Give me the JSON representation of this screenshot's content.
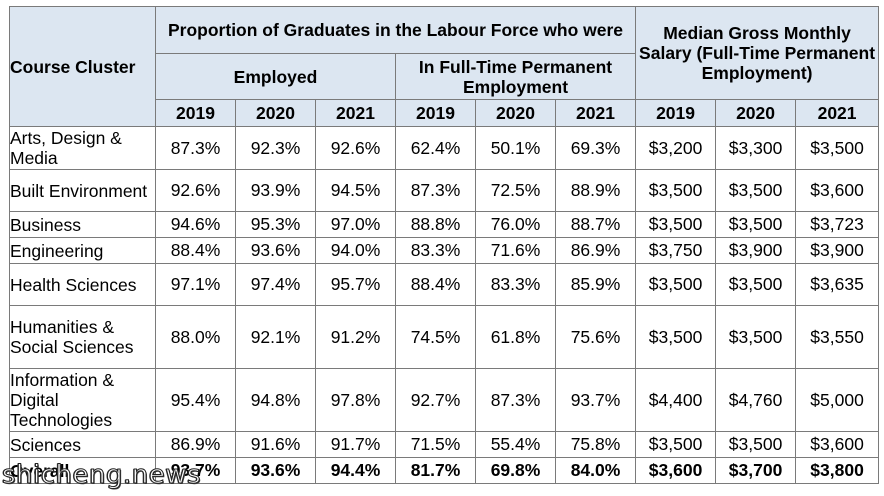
{
  "header": {
    "course_cluster": "Course Cluster",
    "proportion": "Proportion of Graduates in the Labour Force who were",
    "employed": "Employed",
    "full_time": "In Full-Time Permanent Employment",
    "salary": "Median Gross Monthly Salary (Full-Time Permanent Employment)",
    "years": [
      "2019",
      "2020",
      "2021"
    ]
  },
  "rows": [
    {
      "label": "Arts, Design & Media",
      "values": [
        "87.3%",
        "92.3%",
        "92.6%",
        "62.4%",
        "50.1%",
        "69.3%",
        "$3,200",
        "$3,300",
        "$3,500"
      ]
    },
    {
      "label": "Built Environment",
      "values": [
        "92.6%",
        "93.9%",
        "94.5%",
        "87.3%",
        "72.5%",
        "88.9%",
        "$3,500",
        "$3,500",
        "$3,600"
      ]
    },
    {
      "label": "Business",
      "values": [
        "94.6%",
        "95.3%",
        "97.0%",
        "88.8%",
        "76.0%",
        "88.7%",
        "$3,500",
        "$3,500",
        "$3,723"
      ]
    },
    {
      "label": "Engineering",
      "values": [
        "88.4%",
        "93.6%",
        "94.0%",
        "83.3%",
        "71.6%",
        "86.9%",
        "$3,750",
        "$3,900",
        "$3,900"
      ]
    },
    {
      "label": "Health Sciences",
      "values": [
        "97.1%",
        "97.4%",
        "95.7%",
        "88.4%",
        "83.3%",
        "85.9%",
        "$3,500",
        "$3,500",
        "$3,635"
      ]
    },
    {
      "label": "Humanities & Social Sciences",
      "values": [
        "88.0%",
        "92.1%",
        "91.2%",
        "74.5%",
        "61.8%",
        "75.6%",
        "$3,500",
        "$3,500",
        "$3,550"
      ]
    },
    {
      "label": "Information & Digital Technologies",
      "values": [
        "95.4%",
        "94.8%",
        "97.8%",
        "92.7%",
        "87.3%",
        "93.7%",
        "$4,400",
        "$4,760",
        "$5,000"
      ]
    },
    {
      "label": "Sciences",
      "values": [
        "86.9%",
        "91.6%",
        "91.7%",
        "71.5%",
        "55.4%",
        "75.8%",
        "$3,500",
        "$3,500",
        "$3,600"
      ]
    }
  ],
  "overall": {
    "label": "Overall",
    "values": [
      "93.7%",
      "93.6%",
      "94.4%",
      "81.7%",
      "69.8%",
      "84.0%",
      "$3,600",
      "$3,700",
      "$3,800"
    ]
  },
  "watermark": "shicheng.news"
}
